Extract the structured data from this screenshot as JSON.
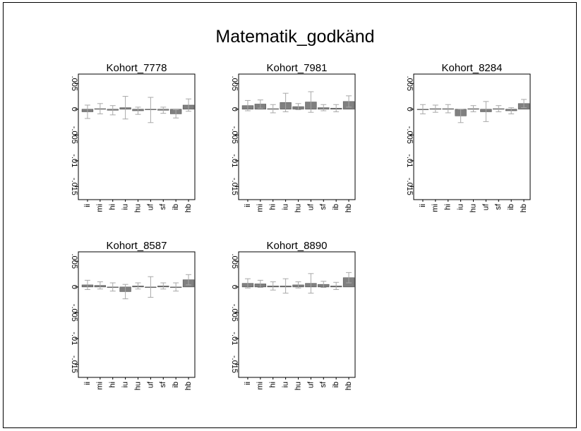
{
  "title": "Matematik_godkänd",
  "colors": {
    "bar": "#808080",
    "bar_stroke": "#555555",
    "errorbar": "#a8a8a8",
    "axis": "#000000"
  },
  "chart_data": {
    "type": "bar",
    "ylim": [
      -0.017,
      0.006
    ],
    "yticks": [
      0.005,
      0,
      -0.005,
      -0.01,
      -0.015
    ],
    "ytick_labels": [
      ".005",
      "0",
      "-.005",
      "-.01",
      "-.015"
    ],
    "categories": [
      "ii",
      "mi",
      "hi",
      "iu",
      "hu",
      "uf",
      "sf",
      "ib",
      "hb"
    ],
    "grid": false,
    "panels": [
      {
        "title": "Kohort_7778",
        "values": [
          -0.0005,
          0.0001,
          -0.0002,
          0.0003,
          -0.0003,
          -0.0001,
          -0.0002,
          -0.0009,
          0.0008
        ],
        "lower": [
          -0.0018,
          -0.0009,
          -0.0011,
          -0.0019,
          -0.001,
          -0.0026,
          -0.0008,
          -0.0017,
          -0.0004
        ],
        "upper": [
          0.0008,
          0.0011,
          0.0007,
          0.0025,
          0.0004,
          0.0023,
          0.0004,
          -0.0001,
          0.002
        ]
      },
      {
        "title": "Kohort_7981",
        "values": [
          0.0007,
          0.001,
          0.0001,
          0.0013,
          0.0005,
          0.0014,
          0.0003,
          0.0002,
          0.0015
        ],
        "lower": [
          -0.0003,
          0.0002,
          -0.0007,
          -0.0005,
          -0.0001,
          -0.0006,
          -0.0003,
          -0.0005,
          0.0004
        ],
        "upper": [
          0.0017,
          0.0018,
          0.0009,
          0.0031,
          0.0011,
          0.0034,
          0.0009,
          0.0009,
          0.0026
        ]
      },
      {
        "title": "Kohort_8284",
        "values": [
          0.0,
          0.0001,
          0.0001,
          -0.0013,
          0.0001,
          -0.0005,
          0.0001,
          -0.0003,
          0.0011
        ],
        "lower": [
          -0.0009,
          -0.0006,
          -0.0007,
          -0.0026,
          -0.0005,
          -0.0024,
          -0.0005,
          -0.0009,
          0.0003
        ],
        "upper": [
          0.0009,
          0.0008,
          0.0009,
          0.0,
          0.0007,
          0.0015,
          0.0007,
          0.0003,
          0.0019
        ]
      },
      {
        "title": "Kohort_8587",
        "values": [
          0.0004,
          0.0003,
          0.0,
          -0.0009,
          0.0002,
          0.0,
          0.0002,
          0.0,
          0.0014
        ],
        "lower": [
          -0.0005,
          -0.0004,
          -0.0008,
          -0.0023,
          -0.0004,
          -0.002,
          -0.0004,
          -0.0008,
          0.0004
        ],
        "upper": [
          0.0013,
          0.001,
          0.0008,
          0.0005,
          0.0008,
          0.002,
          0.0008,
          0.0008,
          0.0024
        ]
      },
      {
        "title": "Kohort_8890",
        "values": [
          0.0007,
          0.0006,
          0.0002,
          0.0002,
          0.0004,
          0.0007,
          0.0005,
          0.0002,
          0.0018
        ],
        "lower": [
          -0.0002,
          -0.0001,
          -0.0006,
          -0.0012,
          -0.0002,
          -0.0012,
          -0.0001,
          -0.0005,
          0.0008
        ],
        "upper": [
          0.0016,
          0.0013,
          0.001,
          0.0016,
          0.001,
          0.0026,
          0.0011,
          0.0009,
          0.0028
        ]
      }
    ]
  }
}
